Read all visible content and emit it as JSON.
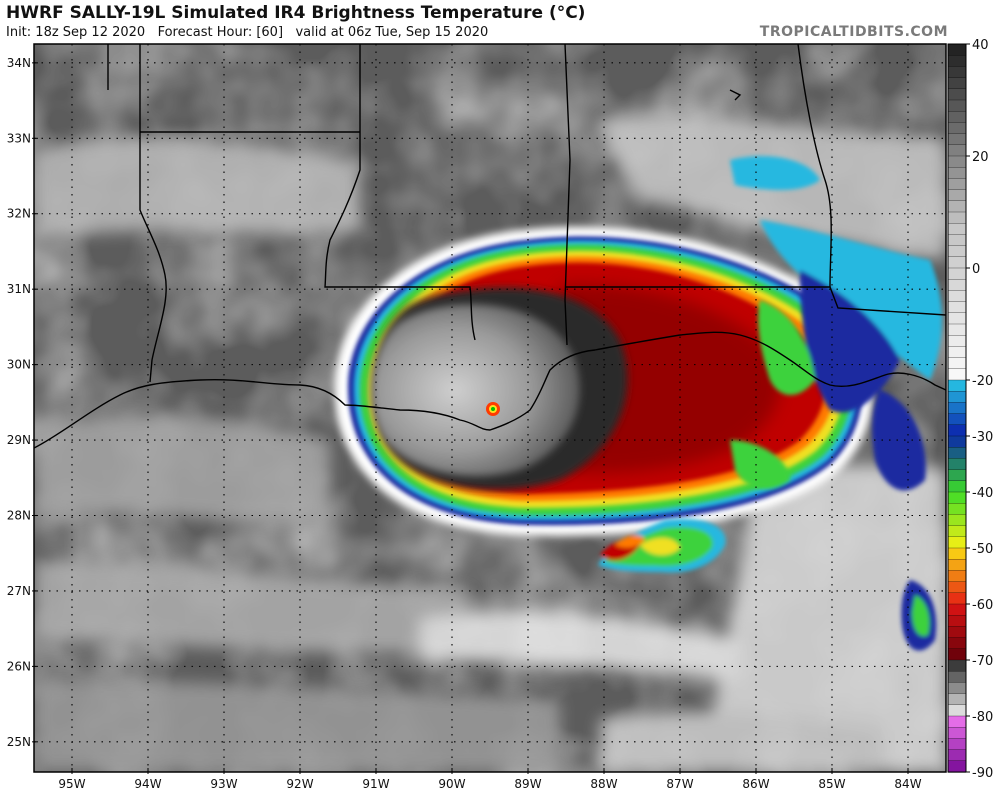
{
  "header": {
    "title": "HWRF SALLY-19L Simulated IR4 Brightness Temperature (°C)",
    "init": "Init: 18z Sep 12 2020",
    "forecast_hour": "Forecast Hour: [60]",
    "valid": "valid at 06z Tue, Sep 15 2020",
    "watermark": "TROPICALTIDBITS.COM"
  },
  "map": {
    "lat_labels": [
      "34N",
      "33N",
      "32N",
      "31N",
      "30N",
      "29N",
      "28N",
      "27N",
      "26N",
      "25N"
    ],
    "lon_labels": [
      "95W",
      "94W",
      "93W",
      "92W",
      "91W",
      "90W",
      "89W",
      "88W",
      "87W",
      "86W",
      "85W",
      "84W"
    ],
    "lat_values": [
      34,
      33,
      32,
      31,
      30,
      29,
      28,
      27,
      26,
      25
    ],
    "lon_values": [
      -95,
      -94,
      -93,
      -92,
      -91,
      -90,
      -89,
      -88,
      -87,
      -86,
      -85,
      -84
    ],
    "lon_range": [
      -95.5,
      -83.5
    ],
    "lat_range": [
      24.6,
      34.25
    ]
  },
  "colorbar": {
    "tick_labels": [
      "40",
      "20",
      "0",
      "-20",
      "-30",
      "-40",
      "-50",
      "-60",
      "-70",
      "-80",
      "-90"
    ],
    "range": [
      -90,
      40
    ]
  },
  "colors": {
    "gray_cloud": "#bdbdbd",
    "dark_cloud": "#3a3a3a",
    "red_core": "#b40000",
    "green": "#2cc62c",
    "blue": "#0a2aa0",
    "cyan": "#22b8d8"
  }
}
